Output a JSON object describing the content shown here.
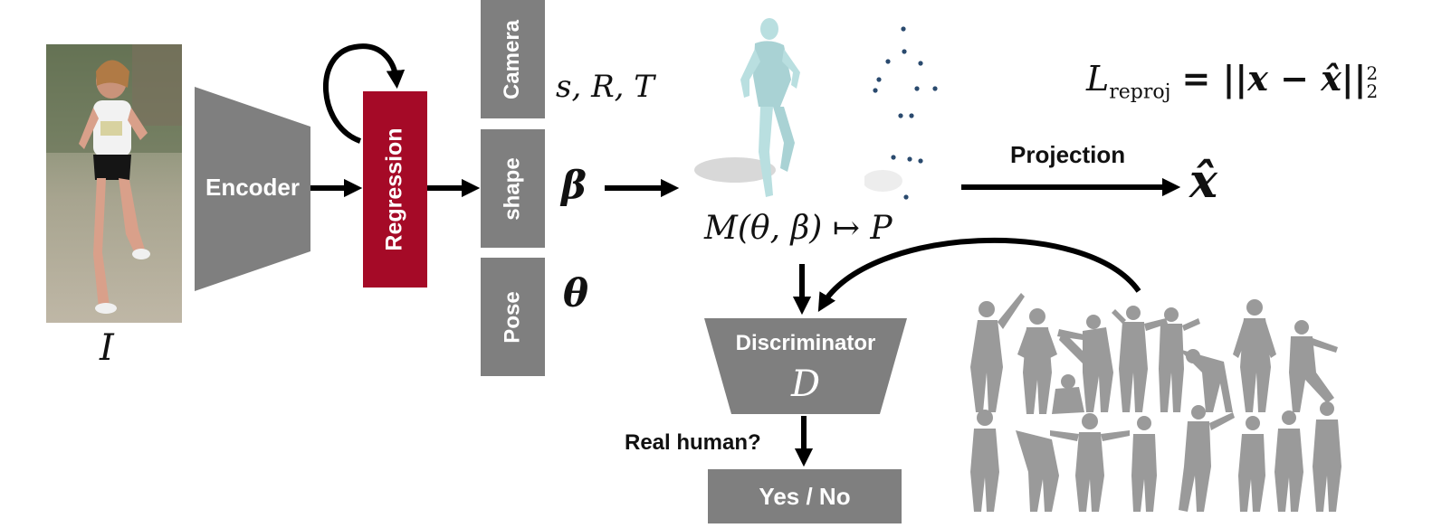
{
  "input": {
    "symbol": "I"
  },
  "encoder": {
    "label": "Encoder"
  },
  "regression": {
    "label": "Regression",
    "color": "#a50a27"
  },
  "params": {
    "camera": {
      "label": "Camera",
      "symbol": "s, R, T"
    },
    "shape": {
      "label": "shape",
      "symbol": "β"
    },
    "pose": {
      "label": "Pose",
      "symbol": "θ"
    }
  },
  "model": {
    "equation": "M(θ, β) ↦ P"
  },
  "loss": {
    "lhs": "L",
    "subscript": "reproj",
    "rhs": "= ||x − x̂||",
    "sup": "2",
    "sub": "2"
  },
  "projection": {
    "label": "Projection",
    "output": "x̂"
  },
  "discriminator": {
    "label": "Discriminator",
    "symbol": "D"
  },
  "question": {
    "label": "Real human?"
  },
  "answer": {
    "label": "Yes / No"
  },
  "colors": {
    "box_gray": "#7f7f7f",
    "arrow": "#000000",
    "mesh": "#9a9a9a",
    "joints": "#2a4a6e",
    "runner_mesh": "#b9dfe0"
  }
}
